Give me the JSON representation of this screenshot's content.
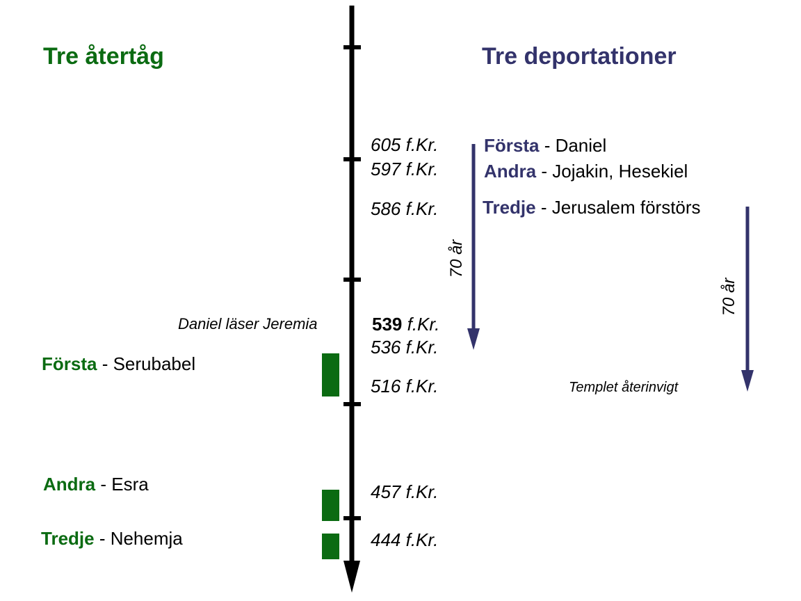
{
  "titles": {
    "left": "Tre återtåg",
    "right": "Tre deportationer"
  },
  "dates": {
    "d605": "605 f.Kr.",
    "d597": "597 f.Kr.",
    "d586": "586 f.Kr.",
    "d539_bold": "539",
    "d539_rest": " f.Kr.",
    "d536": "536 f.Kr.",
    "d516": "516 f.Kr.",
    "d457": "457 f.Kr.",
    "d444": "444 f.Kr."
  },
  "deportations": [
    {
      "kw": "Första",
      "rest": " - Daniel"
    },
    {
      "kw": "Andra",
      "rest": " - Jojakin, Hesekiel"
    },
    {
      "kw": "Tredje",
      "rest": " - Jerusalem förstörs"
    }
  ],
  "returns": [
    {
      "kw": "Första",
      "rest": " - Serubabel"
    },
    {
      "kw": "Andra",
      "rest": " - Esra"
    },
    {
      "kw": "Tredje",
      "rest": " - Nehemja"
    }
  ],
  "notes": {
    "daniel": "Daniel läser Jeremia",
    "temple": "Templet återinvigt",
    "years_left": "70 år",
    "years_right": "70 år"
  },
  "colors": {
    "green": "#0b6b12",
    "navy": "#33336b",
    "axis": "#000000"
  }
}
